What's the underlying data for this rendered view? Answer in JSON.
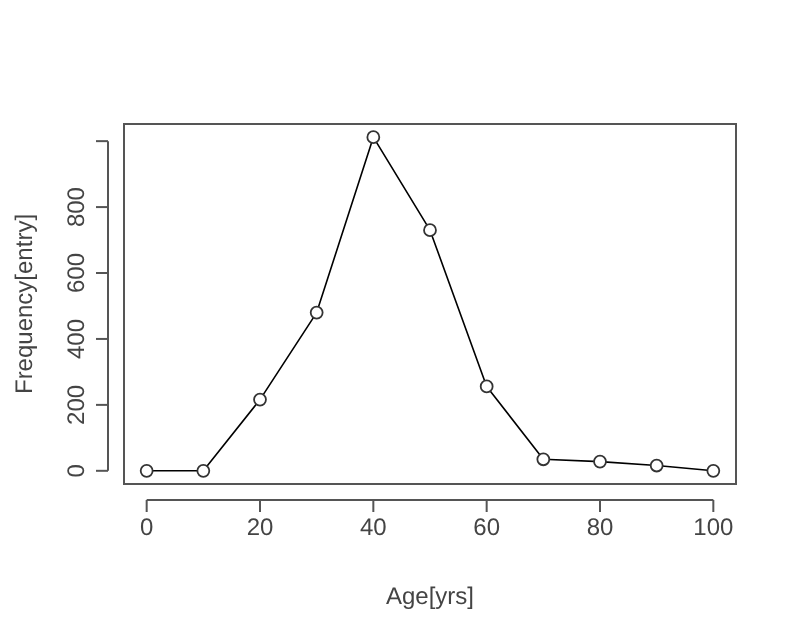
{
  "chart_data": {
    "type": "line",
    "xlabel": "Age[yrs]",
    "ylabel": "Frequency[entry]",
    "x": [
      0,
      10,
      20,
      30,
      40,
      50,
      60,
      70,
      80,
      90,
      100
    ],
    "series": [
      {
        "color": "#000000",
        "values": [
          0,
          0,
          216,
          480,
          1012,
          730,
          256,
          35,
          28,
          16,
          0
        ]
      }
    ],
    "xlim": [
      -4,
      104
    ],
    "ylim": [
      -40,
      1052
    ],
    "xticks": [
      0,
      20,
      40,
      60,
      80,
      100
    ],
    "yticks": [
      0,
      200,
      400,
      600,
      800,
      {
        "value": 1000,
        "label": null
      }
    ],
    "marker": "circle",
    "grid": false
  }
}
